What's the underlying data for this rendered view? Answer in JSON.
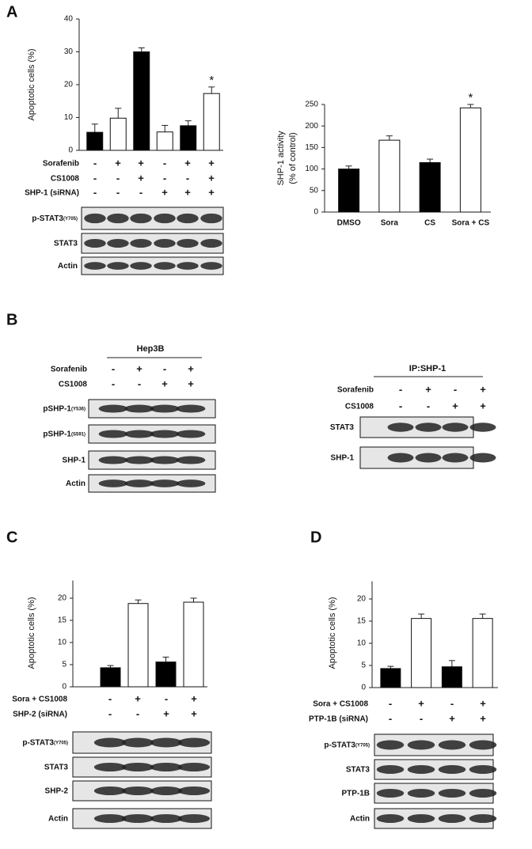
{
  "panel_labels": [
    "A",
    "B",
    "C",
    "D"
  ],
  "chart_data": [
    {
      "type": "bar",
      "y_label": [
        "Apoptotic cells (%)"
      ],
      "categories": [
        null,
        null,
        null,
        null,
        null,
        null
      ],
      "values": [
        5.5,
        9.8,
        30,
        5.6,
        7.5,
        17.3
      ],
      "errors": [
        2.5,
        3,
        1.2,
        2,
        1.5,
        2
      ],
      "colors": [
        "#000000",
        "#ffffff",
        "#000000",
        "#ffffff",
        "#000000",
        "#ffffff"
      ],
      "significance": [
        null,
        null,
        null,
        null,
        null,
        "*"
      ],
      "ylim": [
        0,
        40
      ],
      "yticks": [
        0,
        10,
        20,
        30,
        40
      ]
    },
    {
      "type": "bar",
      "y_label": [
        "SHP-1 activity",
        "(% of control)"
      ],
      "categories": [
        "DMSO",
        "Sora",
        "CS",
        "Sora + CS"
      ],
      "values": [
        100,
        167,
        115,
        242
      ],
      "errors": [
        7,
        10,
        8,
        8
      ],
      "colors": [
        "#000000",
        "#ffffff",
        "#000000",
        "#ffffff"
      ],
      "significance": [
        null,
        null,
        null,
        "*"
      ],
      "ylim": [
        0,
        250
      ],
      "yticks": [
        0,
        50,
        100,
        150,
        200,
        250
      ]
    },
    {
      "type": "bar",
      "y_label": [
        "Apoptotic cells (%)"
      ],
      "categories": [
        null,
        null,
        null,
        null
      ],
      "values": [
        4.3,
        18.8,
        5.6,
        19.1
      ],
      "errors": [
        0.5,
        0.8,
        1.1,
        0.9
      ],
      "colors": [
        "#000000",
        "#ffffff",
        "#000000",
        "#ffffff"
      ],
      "significance": [
        null,
        null,
        null,
        null
      ],
      "ylim": [
        0,
        24
      ],
      "yticks": [
        0,
        5,
        10,
        15,
        20
      ]
    },
    {
      "type": "bar",
      "y_label": [
        "Apoptotic cells (%)"
      ],
      "categories": [
        null,
        null,
        null,
        null
      ],
      "values": [
        4.3,
        15.6,
        4.7,
        15.6
      ],
      "errors": [
        0.5,
        1,
        1.4,
        1
      ],
      "colors": [
        "#000000",
        "#ffffff",
        "#000000",
        "#ffffff"
      ],
      "significance": [
        null,
        null,
        null,
        null
      ],
      "ylim": [
        0,
        24
      ],
      "yticks": [
        0,
        5,
        10,
        15,
        20
      ]
    }
  ],
  "blot_groups": [
    {
      "conditions": [
        {
          "label": "Sorafenib",
          "signs": [
            "-",
            "+",
            "+",
            "-",
            "+",
            "+"
          ]
        },
        {
          "label": "CS1008",
          "signs": [
            "-",
            "-",
            "+",
            "-",
            "-",
            "+"
          ]
        },
        {
          "label": "SHP-1 (siRNA)",
          "signs": [
            "-",
            "-",
            "-",
            "+",
            "+",
            "+"
          ]
        }
      ],
      "blots": [
        {
          "name": "p-STAT3",
          "sub": "(Y705)"
        },
        {
          "name": "STAT3"
        },
        {
          "name": "Actin"
        }
      ]
    },
    {
      "title": "Hep3B",
      "conditions": [
        {
          "label": "Sorafenib",
          "signs": [
            "-",
            "+",
            "-",
            "+"
          ]
        },
        {
          "label": "CS1008",
          "signs": [
            "-",
            "-",
            "+",
            "+"
          ]
        }
      ],
      "blots": [
        {
          "name": "pSHP-1",
          "sub": "(Y536)"
        },
        {
          "name": "pSHP-1",
          "sub": "(S591)"
        },
        {
          "name": "SHP-1"
        },
        {
          "name": "Actin"
        }
      ]
    },
    {
      "title": "IP:SHP-1",
      "conditions": [
        {
          "label": "Sorafenib",
          "signs": [
            "-",
            "+",
            "-",
            "+"
          ]
        },
        {
          "label": "CS1008",
          "signs": [
            "-",
            "-",
            "+",
            "+"
          ]
        }
      ],
      "blots": [
        {
          "name": "STAT3"
        },
        {
          "name": "SHP-1"
        }
      ]
    },
    {
      "conditions": [
        {
          "label": "Sora + CS1008",
          "signs": [
            "-",
            "+",
            "-",
            "+"
          ]
        },
        {
          "label": "SHP-2 (siRNA)",
          "signs": [
            "-",
            "-",
            "+",
            "+"
          ]
        }
      ],
      "blots": [
        {
          "name": "p-STAT3",
          "sub": "(Y705)"
        },
        {
          "name": "STAT3"
        },
        {
          "name": "SHP-2"
        },
        {
          "name": "Actin"
        }
      ]
    },
    {
      "conditions": [
        {
          "label": "Sora + CS1008",
          "signs": [
            "-",
            "+",
            "-",
            "+"
          ]
        },
        {
          "label": "PTP-1B (siRNA)",
          "signs": [
            "-",
            "-",
            "+",
            "+"
          ]
        }
      ],
      "blots": [
        {
          "name": "p-STAT3",
          "sub": "(Y705)"
        },
        {
          "name": "STAT3"
        },
        {
          "name": "PTP-1B"
        },
        {
          "name": "Actin"
        }
      ]
    }
  ]
}
